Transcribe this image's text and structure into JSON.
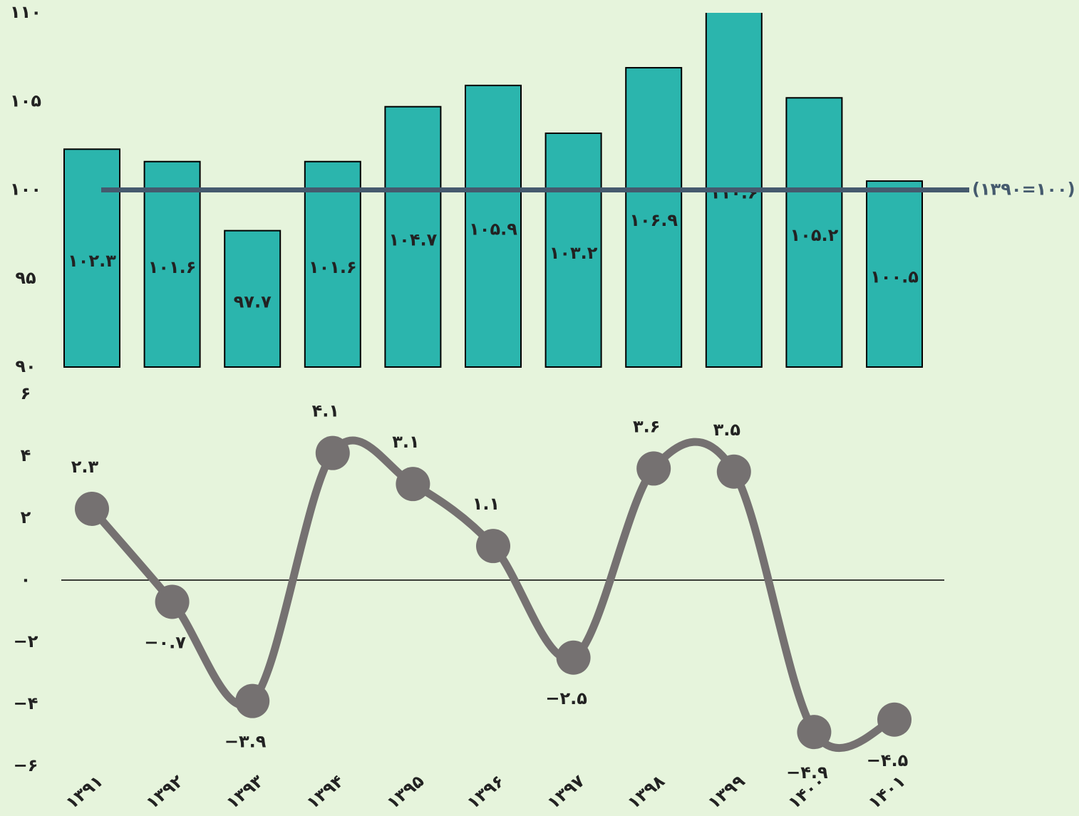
{
  "chart_data": [
    {
      "type": "bar",
      "values": [
        102.3,
        101.6,
        97.7,
        101.6,
        104.7,
        105.9,
        103.2,
        106.9,
        110.6,
        105.2,
        100.5
      ],
      "value_labels": [
        "۱۰۲.۳",
        "۱۰۱.۶",
        "۹۷.۷",
        "۱۰۱.۶",
        "۱۰۴.۷",
        "۱۰۵.۹",
        "۱۰۳.۲",
        "۱۰۶.۹",
        "۱۱۰.۶",
        "۱۰۵.۲",
        "۱۰۰.۵"
      ],
      "color": "#2bb5ad",
      "ylim": [
        90,
        110
      ],
      "yticks": [
        {
          "value": 90,
          "label": "۹۰"
        },
        {
          "value": 95,
          "label": "۹۵"
        },
        {
          "value": 100,
          "label": "۱۰۰"
        },
        {
          "value": 105,
          "label": "۱۰۵"
        },
        {
          "value": 110,
          "label": "۱۱۰"
        }
      ],
      "reference_line": {
        "value": 100,
        "label": "(۱۳۹۰=۱۰۰)",
        "color": "#455a6e"
      }
    },
    {
      "type": "line",
      "categories": [
        "۱۳۹۱",
        "۱۳۹۲",
        "۱۳۹۳",
        "۱۳۹۴",
        "۱۳۹۵",
        "۱۳۹۶",
        "۱۳۹۷",
        "۱۳۹۸",
        "۱۳۹۹",
        "۱۴۰۰",
        "۱۴۰۱"
      ],
      "values": [
        2.3,
        -0.7,
        -3.9,
        4.1,
        3.1,
        1.1,
        -2.5,
        3.6,
        3.5,
        -4.9,
        -4.5
      ],
      "value_labels": [
        "۲.۳",
        "−۰.۷",
        "−۳.۹",
        "۴.۱",
        "۳.۱",
        "۱.۱",
        "−۲.۵",
        "۳.۶",
        "۳.۵",
        "−۴.۹",
        "−۴.۵"
      ],
      "color": "#757171",
      "ylim": [
        -6,
        6
      ],
      "yticks": [
        {
          "value": 6,
          "label": "۶"
        },
        {
          "value": 4,
          "label": "۴"
        },
        {
          "value": 2,
          "label": "۲"
        },
        {
          "value": 0,
          "label": "۰"
        },
        {
          "value": -2,
          "label": "−۲"
        },
        {
          "value": -4,
          "label": "−۴"
        },
        {
          "value": -6,
          "label": "−۶"
        }
      ]
    }
  ]
}
